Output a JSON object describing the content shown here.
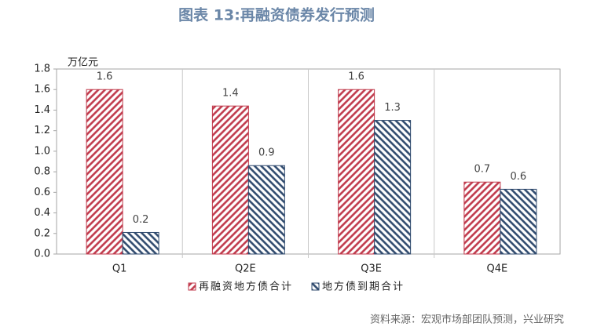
{
  "chart_data": {
    "type": "bar",
    "title": "图表 13:再融资债券发行预测",
    "y_label": "万亿元",
    "source": "资料来源：宏观市场部团队预测，兴业研究",
    "categories": [
      "Q1",
      "Q2E",
      "Q3E",
      "Q4E"
    ],
    "series": [
      {
        "name": "再融资地方债合计",
        "color": "#c0394b",
        "values": [
          1.6,
          1.44,
          1.6,
          0.7
        ],
        "value_labels": [
          "1.6",
          "1.4",
          "1.6",
          "0.7"
        ]
      },
      {
        "name": "地方债到期合计",
        "color": "#2f4a6e",
        "values": [
          0.21,
          0.86,
          1.3,
          0.63
        ],
        "value_labels": [
          "0.2",
          "0.9",
          "1.3",
          "0.6"
        ]
      }
    ],
    "ylim": [
      0,
      1.8
    ],
    "yticks": [
      {
        "value": 0,
        "label": "0.0"
      },
      0.2,
      0.4,
      0.6,
      0.8,
      {
        "value": 1,
        "label": "1.0"
      },
      1.2,
      1.4,
      1.6,
      1.8
    ]
  }
}
